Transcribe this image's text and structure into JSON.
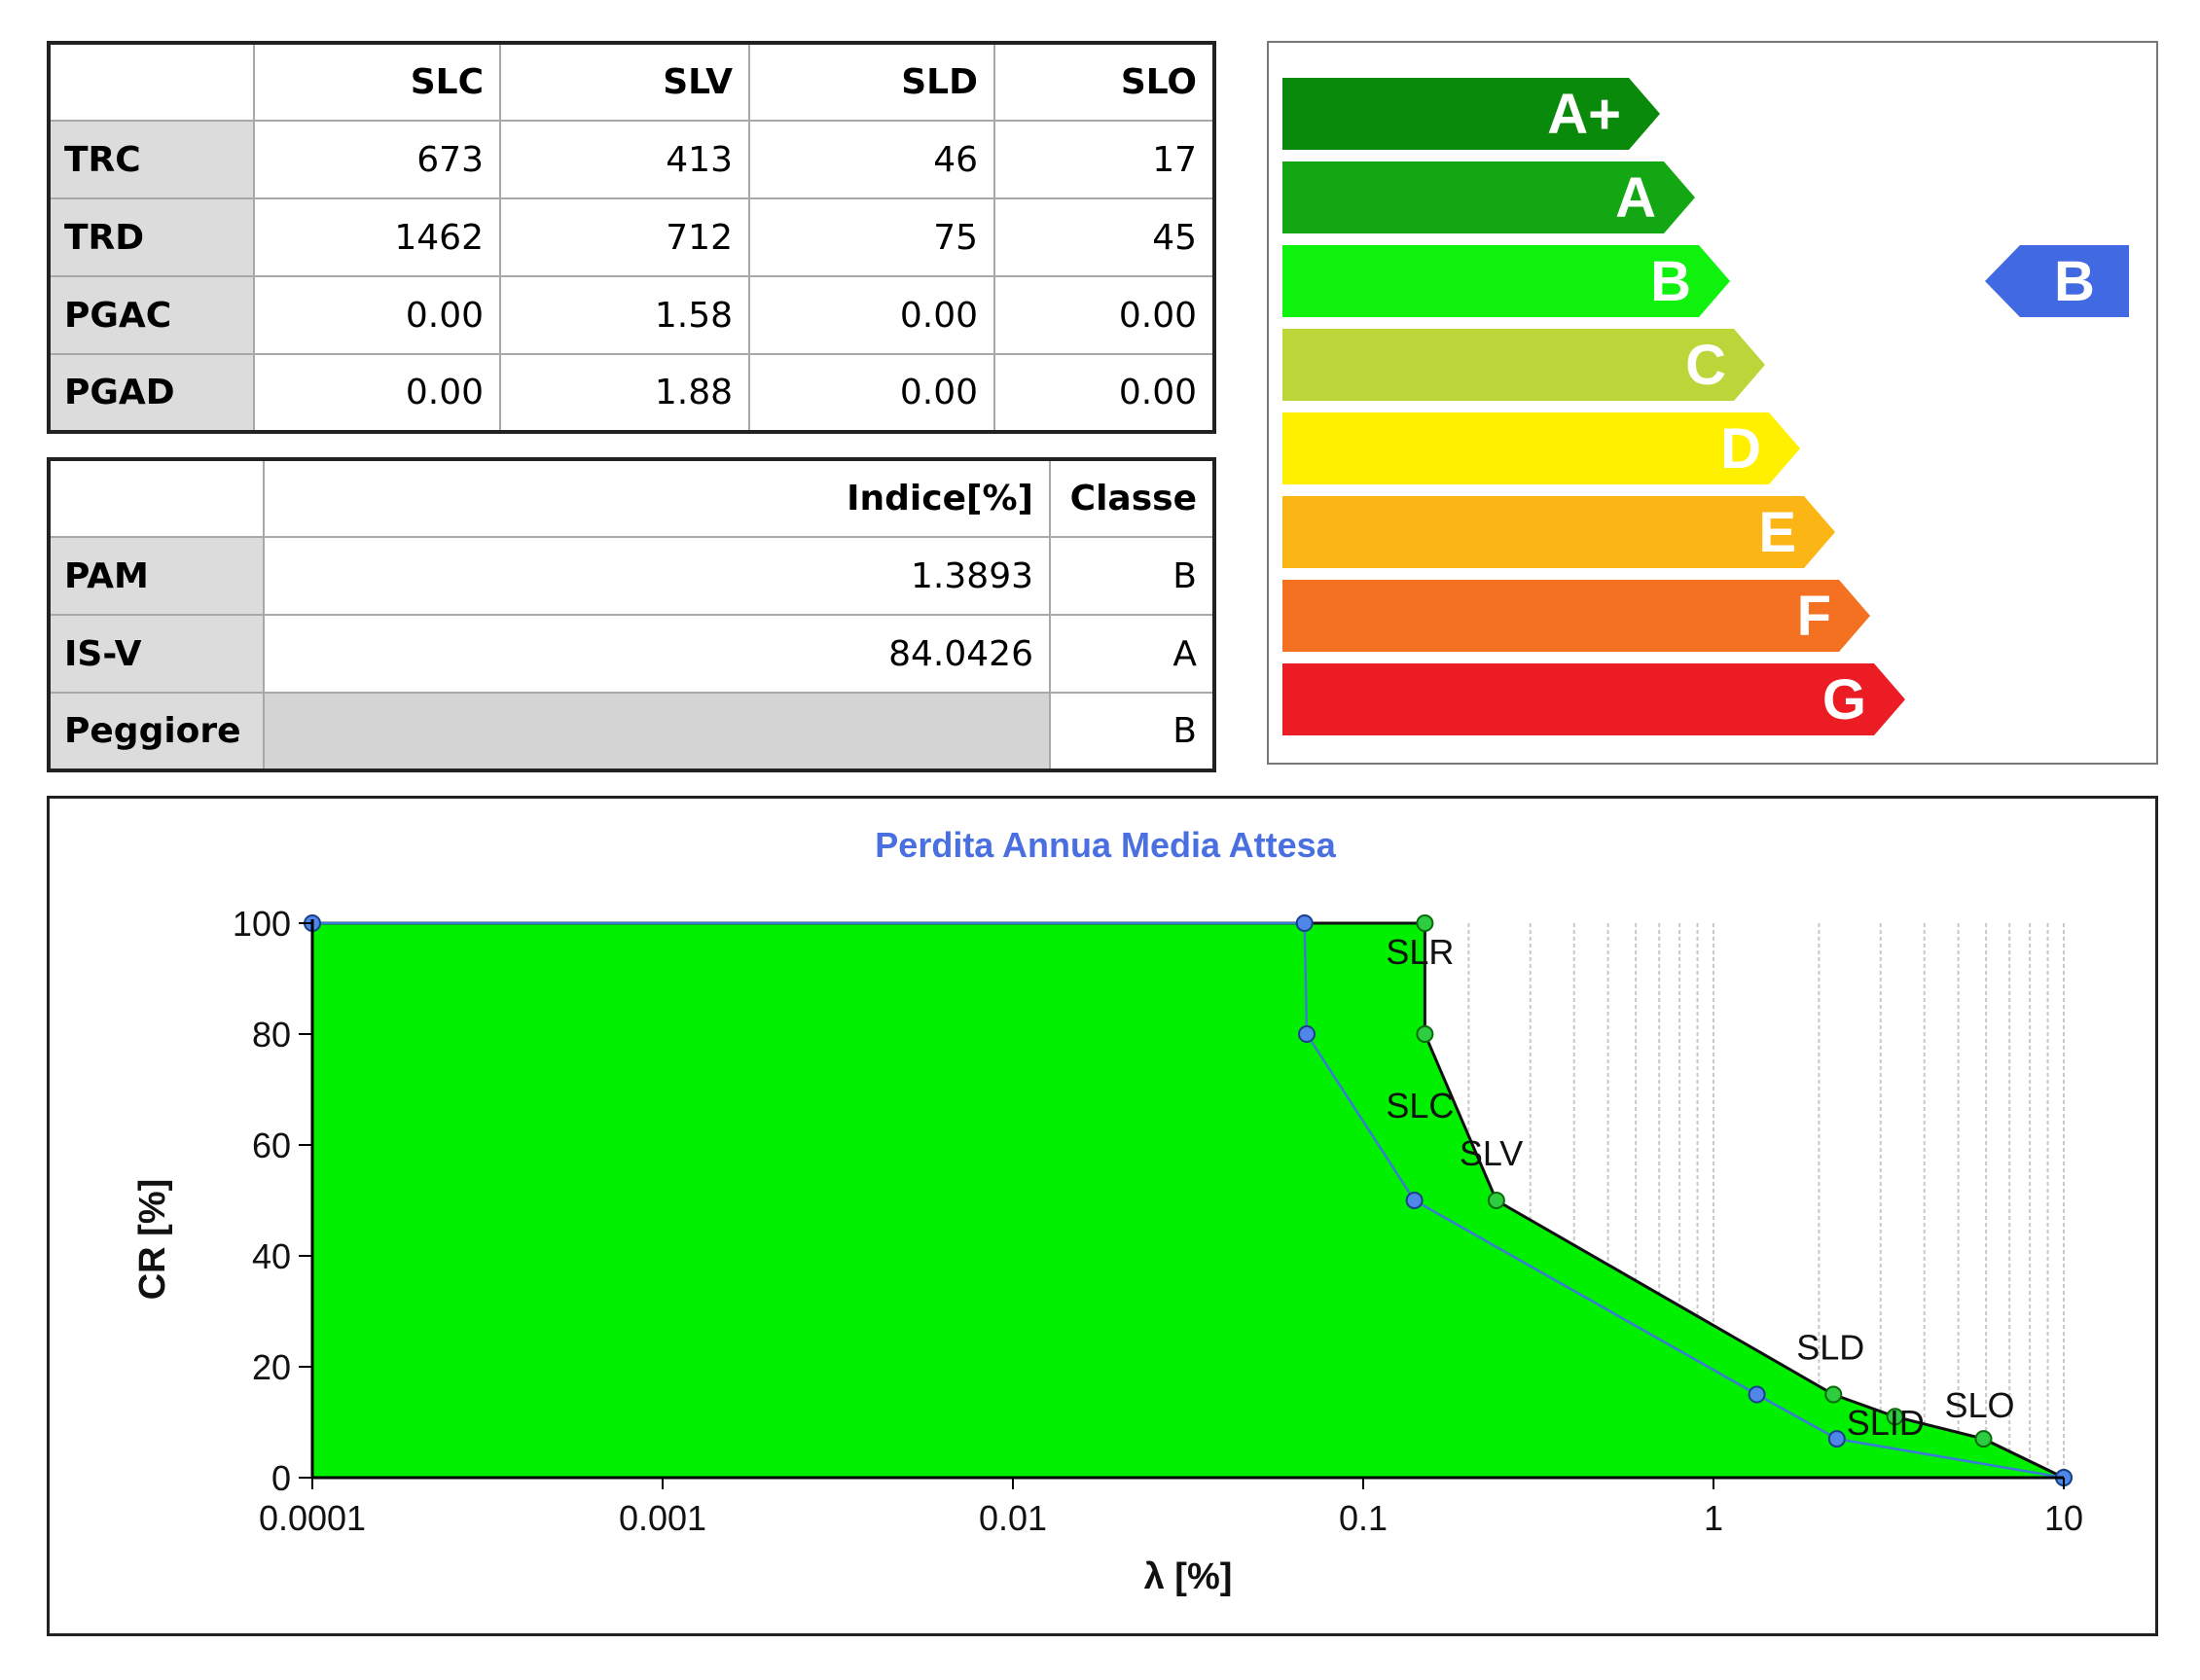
{
  "states_table": {
    "columns": [
      "SLC",
      "SLV",
      "SLD",
      "SLO"
    ],
    "rows": [
      {
        "label": "TRC",
        "values": [
          "673",
          "413",
          "46",
          "17"
        ]
      },
      {
        "label": "TRD",
        "values": [
          "1462",
          "712",
          "75",
          "45"
        ]
      },
      {
        "label": "PGAC",
        "values": [
          "0.00",
          "1.58",
          "0.00",
          "0.00"
        ]
      },
      {
        "label": "PGAD",
        "values": [
          "0.00",
          "1.88",
          "0.00",
          "0.00"
        ]
      }
    ]
  },
  "index_table": {
    "columns": [
      "Indice[%]",
      "Classe"
    ],
    "rows": [
      {
        "label": "PAM",
        "indice": "1.3893",
        "classe": "B"
      },
      {
        "label": "IS-V",
        "indice": "84.0426",
        "classe": "A"
      },
      {
        "label": "Peggiore",
        "indice": "",
        "classe": "B"
      }
    ]
  },
  "energy_classes": {
    "classes": [
      {
        "label": "A+",
        "color": "#0a8a0a"
      },
      {
        "label": "A",
        "color": "#13a813"
      },
      {
        "label": "B",
        "color": "#0ef20e"
      },
      {
        "label": "C",
        "color": "#bcd63a"
      },
      {
        "label": "D",
        "color": "#fff000"
      },
      {
        "label": "E",
        "color": "#fbb615"
      },
      {
        "label": "F",
        "color": "#f37121"
      },
      {
        "label": "G",
        "color": "#ec1c24"
      }
    ],
    "current": {
      "label": "B",
      "color": "#4169e1"
    }
  },
  "chart_data": {
    "type": "area",
    "title": "Perdita Annua Media Attesa",
    "xlabel": "λ [%]",
    "ylabel": "CR [%]",
    "x_scale": "log",
    "xlim": [
      0.0001,
      10
    ],
    "ylim": [
      0,
      100
    ],
    "x_ticks": [
      "0.0001",
      "0.001",
      "0.01",
      "0.1",
      "1",
      "10"
    ],
    "y_ticks": [
      "0",
      "20",
      "40",
      "60",
      "80",
      "100"
    ],
    "grid": true,
    "fill_color": "#00f000",
    "series": [
      {
        "points": [
          [
            0.0001,
            100
          ],
          [
            0.15,
            100
          ],
          [
            0.15,
            80
          ],
          [
            0.24,
            50
          ],
          [
            2.2,
            15
          ],
          [
            3.3,
            11
          ],
          [
            5.9,
            7
          ],
          [
            10,
            0
          ]
        ]
      },
      {
        "points": [
          [
            0.0001,
            100
          ],
          [
            0.068,
            100
          ],
          [
            0.069,
            80
          ],
          [
            0.14,
            50
          ],
          [
            1.33,
            15
          ],
          [
            2.25,
            7
          ],
          [
            10,
            0
          ]
        ]
      }
    ],
    "annotations": [
      {
        "text": "SLR",
        "x": 0.15,
        "y": 100
      },
      {
        "text": "SLC",
        "x": 0.15,
        "y": 80
      },
      {
        "text": "SLV",
        "x": 0.24,
        "y": 50
      },
      {
        "text": "SLD",
        "x": 2.2,
        "y": 15
      },
      {
        "text": "SLID",
        "x": 2.25,
        "y": 7
      },
      {
        "text": "SLO",
        "x": 5.9,
        "y": 7
      }
    ]
  }
}
